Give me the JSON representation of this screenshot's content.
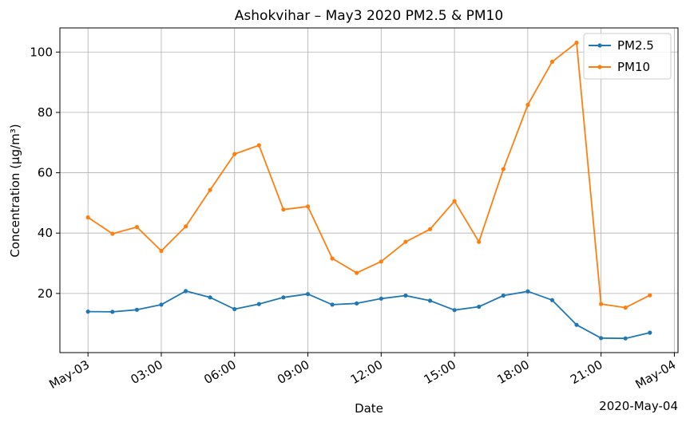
{
  "chart_data": {
    "type": "line",
    "title": "Ashokvihar – May3 2020 PM2.5 & PM10",
    "xlabel": "Date",
    "ylabel": "Concentration (μg/m³)",
    "x_offset_label": "2020-May-04",
    "x": [
      "2020-05-03 00:00",
      "2020-05-03 01:00",
      "2020-05-03 02:00",
      "2020-05-03 03:00",
      "2020-05-03 04:00",
      "2020-05-03 05:00",
      "2020-05-03 06:00",
      "2020-05-03 07:00",
      "2020-05-03 08:00",
      "2020-05-03 09:00",
      "2020-05-03 10:00",
      "2020-05-03 11:00",
      "2020-05-03 12:00",
      "2020-05-03 13:00",
      "2020-05-03 14:00",
      "2020-05-03 15:00",
      "2020-05-03 16:00",
      "2020-05-03 17:00",
      "2020-05-03 18:00",
      "2020-05-03 19:00",
      "2020-05-03 20:00",
      "2020-05-03 21:00",
      "2020-05-03 22:00",
      "2020-05-03 23:00"
    ],
    "xlim": [
      "2020-05-02 22:51",
      "2020-05-04 00:09"
    ],
    "ylim": [
      0.4,
      108
    ],
    "x_ticks": [
      {
        "hour": 0,
        "label": "May-03"
      },
      {
        "hour": 3,
        "label": "03:00"
      },
      {
        "hour": 6,
        "label": "06:00"
      },
      {
        "hour": 9,
        "label": "09:00"
      },
      {
        "hour": 12,
        "label": "12:00"
      },
      {
        "hour": 15,
        "label": "15:00"
      },
      {
        "hour": 18,
        "label": "18:00"
      },
      {
        "hour": 21,
        "label": "21:00"
      },
      {
        "hour": 24,
        "label": "May-04"
      }
    ],
    "y_ticks": [
      20,
      40,
      60,
      80,
      100
    ],
    "grid": true,
    "legend": "upper-right",
    "series": [
      {
        "name": "PM2.5",
        "color": "#1f77b4",
        "values": [
          14.0,
          13.9,
          14.6,
          16.3,
          20.8,
          18.7,
          14.8,
          16.5,
          18.7,
          19.8,
          16.3,
          16.7,
          18.3,
          19.3,
          17.6,
          14.5,
          15.6,
          19.3,
          20.7,
          17.8,
          9.6,
          5.2,
          5.1,
          7.0
        ]
      },
      {
        "name": "PM10",
        "color": "#ff7f0e",
        "values": [
          45.2,
          39.8,
          42.0,
          34.1,
          42.2,
          54.3,
          66.2,
          69.1,
          47.8,
          48.8,
          31.6,
          26.8,
          30.6,
          37.1,
          41.3,
          50.6,
          37.1,
          61.2,
          82.5,
          96.8,
          103.1,
          16.5,
          15.3,
          19.4
        ]
      }
    ]
  }
}
